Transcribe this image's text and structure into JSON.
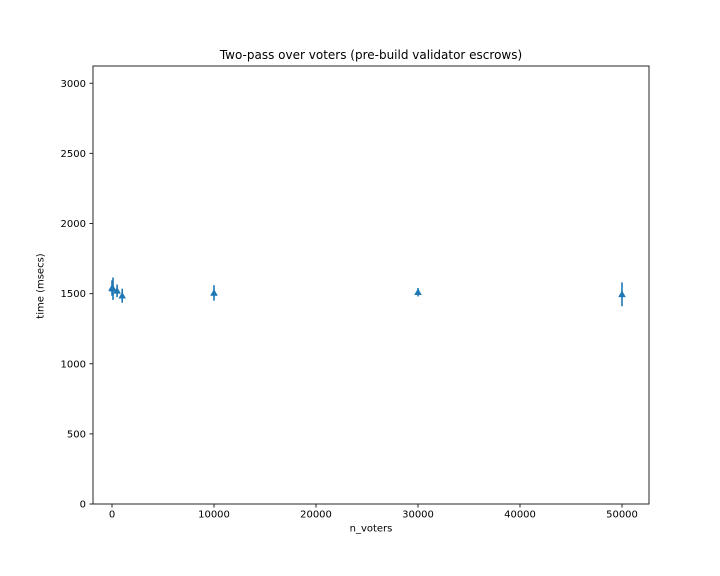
{
  "figure": {
    "background_color": "#ffffff",
    "text_color": "#000000",
    "spine_color": "#262626"
  },
  "chart_data": {
    "type": "scatter",
    "title": "Two-pass over voters (pre-build validator escrows)",
    "xlabel": "n_voters",
    "ylabel": "time (msecs)",
    "x_ticks": [
      0,
      10000,
      20000,
      30000,
      40000,
      50000
    ],
    "y_ticks": [
      0,
      500,
      1000,
      1500,
      2000,
      2500,
      3000
    ],
    "xlim": [
      -1863,
      52647
    ],
    "ylim": [
      0,
      3123
    ],
    "grid": false,
    "legend": "none",
    "marker": "triangle-up",
    "marker_color": "#1f77b4",
    "error_bar_style": "vertical-no-caps",
    "series": [
      {
        "points": [
          {
            "x": 1,
            "y": 1540,
            "yerr": 55
          },
          {
            "x": 100,
            "y": 1535,
            "yerr": 80
          },
          {
            "x": 500,
            "y": 1520,
            "yerr": 45
          },
          {
            "x": 1000,
            "y": 1485,
            "yerr": 50
          },
          {
            "x": 10000,
            "y": 1505,
            "yerr": 55
          },
          {
            "x": 30000,
            "y": 1510,
            "yerr": 30
          },
          {
            "x": 50000,
            "y": 1495,
            "yerr": 85
          }
        ]
      }
    ]
  }
}
